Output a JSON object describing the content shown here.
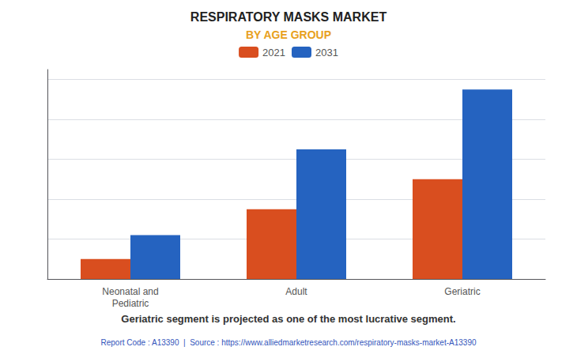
{
  "chart_data": {
    "type": "bar",
    "title": "RESPIRATORY MASKS MARKET",
    "subtitle": "BY AGE GROUP",
    "categories": [
      "Neonatal and\nPediatric",
      "Adult",
      "Geriatric"
    ],
    "series": [
      {
        "name": "2021",
        "color": "#d94e1f",
        "values": [
          1,
          3.5,
          5
        ]
      },
      {
        "name": "2031",
        "color": "#2563c0",
        "values": [
          2.2,
          6.5,
          9.5
        ]
      }
    ],
    "ylim": [
      0,
      10.5
    ],
    "yticks": [
      0,
      2,
      4,
      6,
      8,
      10
    ],
    "grid": true,
    "legend": "top",
    "tick_labels": "x",
    "annotations": [
      "Geriatric segment is projected as one of the most lucrative segment.",
      "Report Code : A13390  |  Source : https://www.alliedmarketresearch.com/respiratory-masks-market-A13390"
    ]
  }
}
